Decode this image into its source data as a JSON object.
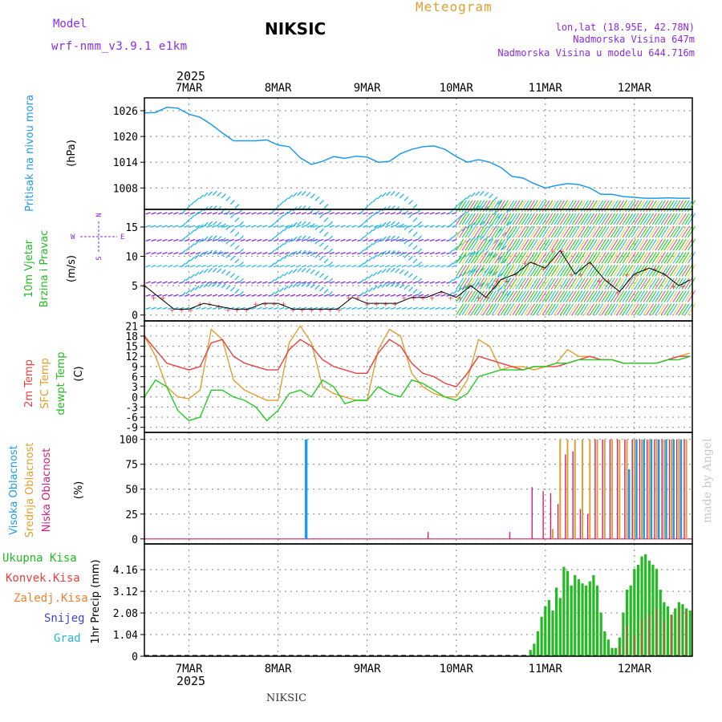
{
  "header": {
    "model_label": "Model",
    "model_name": "wrf-nmm_v3.9.1 e1km",
    "station": "NIKSIC",
    "meteogram": "Meteogram",
    "lonlat": "lon,lat (18.95E, 42.78N)",
    "elevation": "Nadmorska Visina 647m",
    "model_elevation": "Nadmorska Visina u modelu 644.716m",
    "year": "2025",
    "footer_station": "NIKSIC",
    "credit": "made by Angel"
  },
  "colors": {
    "pressure": "#1E9BE8",
    "wind_green": "#22CC22",
    "wind_yellow": "#E0D020",
    "wind_pink": "#FF40A0",
    "wind_cyan": "#22B8E8",
    "wind_purple": "#8A2BE2",
    "temp2m": "#E84040",
    "sfc": "#E0A030",
    "dewpt": "#22CC22",
    "cloud_high": "#1E9BE8",
    "cloud_mid": "#E0A030",
    "cloud_low": "#D0207A",
    "precip_total": "#22BB22",
    "precip_conv": "#E84040",
    "ylabel_pressure": "#1E9BE8",
    "ylabel_wind": "#22BB22",
    "ylabel_temp2m": "#E84040",
    "ylabel_sfc": "#E0A030",
    "ylabel_dew": "#22BB22",
    "ylabel_high": "#1E9BE8",
    "ylabel_mid": "#E0A030",
    "ylabel_low": "#D0207A",
    "legend_total": "#22BB22",
    "legend_conv": "#E84040",
    "legend_frz": "#F08030",
    "legend_snow": "#4040E8",
    "legend_grad": "#22B8D8"
  },
  "days": [
    "7MAR",
    "8MAR",
    "9MAR",
    "10MAR",
    "11MAR",
    "12MAR"
  ],
  "chart_data": [
    {
      "type": "line",
      "title": "",
      "ylabel": [
        "Pritisak na nivou mora",
        "(hPa)"
      ],
      "yticks": [
        1008,
        1014,
        1020,
        1026
      ],
      "ylim": [
        1003,
        1029
      ],
      "x_unit": "hours from 6 MAR 12:00",
      "series": [
        {
          "x": [
            0,
            3,
            6,
            9,
            12,
            15,
            18,
            21,
            24,
            27,
            30,
            33,
            36,
            39,
            42,
            45,
            48,
            51,
            54,
            57,
            60,
            63,
            66,
            69,
            72,
            75,
            78,
            81,
            84,
            87,
            90,
            93,
            96,
            99,
            102,
            105,
            108,
            111,
            114,
            117,
            120,
            123,
            126,
            129,
            132,
            135,
            138,
            141,
            144,
            147
          ],
          "values": [
            1025.5,
            1025.6,
            1026.8,
            1026.6,
            1025.2,
            1024.5,
            1022.8,
            1020.8,
            1019.0,
            1019.0,
            1019.0,
            1019.2,
            1018.0,
            1017.6,
            1015.0,
            1013.5,
            1014.2,
            1015.3,
            1014.9,
            1015.4,
            1015.2,
            1014.0,
            1014.2,
            1016.0,
            1017.0,
            1017.6,
            1017.8,
            1017.0,
            1015.3,
            1014.0,
            1014.6,
            1014.0,
            1012.8,
            1010.7,
            1010.3,
            1009.0,
            1008.0,
            1008.6,
            1009.0,
            1008.8,
            1008.0,
            1006.5,
            1006.5,
            1006.0,
            1005.8,
            1005.6,
            1005.6,
            1005.7,
            1005.6,
            1005.6
          ]
        }
      ]
    },
    {
      "type": "line",
      "title": "",
      "ylabel": [
        "10m Vjetar",
        "Brzina i Pravac",
        "(m/s)"
      ],
      "compass": [
        "N",
        "W",
        "E",
        "S"
      ],
      "yticks": [
        0,
        5,
        10,
        15
      ],
      "ylim": [
        -1,
        18
      ],
      "series": [
        {
          "name": "",
          "x": [
            0,
            4,
            8,
            12,
            16,
            20,
            24,
            28,
            32,
            36,
            40,
            44,
            48,
            52,
            56,
            60,
            64,
            68,
            72,
            76,
            80,
            84,
            88,
            92,
            96,
            100,
            104,
            108,
            112,
            116,
            120,
            124,
            128,
            132,
            136,
            140,
            144,
            147
          ],
          "values": [
            5,
            3,
            1,
            1,
            2,
            1.5,
            1,
            1,
            2,
            2,
            1,
            1,
            1,
            1,
            3,
            2,
            2,
            2,
            3,
            3,
            4,
            3,
            5,
            3,
            6,
            7,
            9,
            8,
            11,
            7,
            9,
            6,
            4,
            7,
            8,
            7,
            5,
            6
          ]
        }
      ]
    },
    {
      "type": "line",
      "title": "",
      "ylabel": [
        "2m Temp",
        "SFC Temp",
        "dewpt Temp",
        "(C)"
      ],
      "yticks": [
        -9,
        -6,
        -3,
        0,
        3,
        6,
        9,
        12,
        15,
        18,
        21
      ],
      "ylim": [
        -10.5,
        22.5
      ],
      "series": [
        {
          "name": "2m Temp",
          "x": [
            0,
            3,
            6,
            9,
            12,
            15,
            18,
            21,
            24,
            27,
            30,
            33,
            36,
            39,
            42,
            45,
            48,
            51,
            54,
            57,
            60,
            63,
            66,
            69,
            72,
            75,
            78,
            81,
            84,
            87,
            90,
            93,
            96,
            99,
            102,
            105,
            108,
            111,
            114,
            117,
            120,
            123,
            126,
            129,
            132,
            135,
            138,
            141,
            144,
            147
          ],
          "values": [
            18,
            14,
            10,
            9,
            8,
            9,
            16,
            17,
            12,
            10,
            9,
            8,
            8,
            14,
            17,
            15,
            11,
            9,
            8,
            7,
            7,
            13,
            17,
            15,
            10,
            7,
            6,
            4,
            3,
            7,
            12,
            11,
            10,
            9,
            8,
            9,
            9,
            9,
            10,
            11,
            12,
            11,
            11,
            10,
            10,
            10,
            10,
            11,
            12,
            12
          ]
        },
        {
          "name": "SFC Temp",
          "x": [
            0,
            3,
            6,
            9,
            12,
            15,
            18,
            21,
            24,
            27,
            30,
            33,
            36,
            39,
            42,
            45,
            48,
            51,
            54,
            57,
            60,
            63,
            66,
            69,
            72,
            75,
            78,
            81,
            84,
            87,
            90,
            93,
            96,
            99,
            102,
            105,
            108,
            111,
            114,
            117,
            120,
            123,
            126,
            129,
            132,
            135,
            138,
            141,
            144,
            147
          ],
          "values": [
            18,
            12,
            3,
            0,
            -0.5,
            2,
            20,
            17,
            5,
            2,
            0.5,
            -1,
            -1,
            16,
            21,
            16,
            3,
            1,
            0,
            -1,
            -1,
            14,
            20,
            18,
            7,
            3,
            1,
            0,
            0,
            5,
            17,
            15,
            8,
            9,
            9,
            8,
            9,
            10,
            14,
            12,
            12,
            11,
            11,
            10,
            10,
            10,
            10,
            11,
            12,
            13
          ]
        },
        {
          "name": "dewpt Temp",
          "x": [
            0,
            3,
            6,
            9,
            12,
            15,
            18,
            21,
            24,
            27,
            30,
            33,
            36,
            39,
            42,
            45,
            48,
            51,
            54,
            57,
            60,
            63,
            66,
            69,
            72,
            75,
            78,
            81,
            84,
            87,
            90,
            93,
            96,
            99,
            102,
            105,
            108,
            111,
            114,
            117,
            120,
            123,
            126,
            129,
            132,
            135,
            138,
            141,
            144,
            147
          ],
          "values": [
            0,
            5,
            3,
            -4,
            -7,
            -6,
            2,
            2,
            0,
            -1,
            -3,
            -7,
            -4,
            1,
            2,
            0,
            5,
            3,
            -2,
            -1,
            -1,
            3,
            1,
            0,
            5,
            4,
            2,
            0,
            -1,
            1,
            6,
            7,
            8,
            8,
            8,
            9,
            9,
            10,
            10,
            11,
            11,
            11,
            11,
            10,
            10,
            10,
            10,
            11,
            11,
            12
          ]
        }
      ]
    },
    {
      "type": "bar",
      "title": "",
      "ylabel": [
        "Visoka Oblacnost",
        "Srednja Oblacnost",
        "Niska Oblacnost",
        "(%)"
      ],
      "yticks": [
        0,
        25,
        50,
        75,
        100
      ],
      "ylim": [
        -5,
        107
      ],
      "series": [
        {
          "name": "Visoka Oblacnost",
          "x": [
            44,
            131,
            133,
            135,
            137,
            139,
            141,
            143,
            145
          ],
          "values": [
            100,
            70,
            100,
            100,
            100,
            100,
            100,
            100,
            100
          ]
        },
        {
          "name": "Srednja Oblacnost",
          "x": [
            110,
            112,
            114,
            116,
            118,
            120,
            122,
            124,
            126,
            128,
            130,
            132,
            134,
            136,
            138,
            140,
            142,
            144,
            146
          ],
          "values": [
            10,
            100,
            100,
            100,
            100,
            100,
            100,
            100,
            100,
            100,
            100,
            100,
            100,
            100,
            100,
            100,
            100,
            100,
            100
          ]
        },
        {
          "name": "Niska Oblacnost",
          "x": [
            76,
            98,
            104,
            107,
            109,
            111,
            113,
            115,
            117,
            119,
            121,
            123,
            125,
            127,
            129,
            131,
            133,
            135,
            137,
            139,
            141,
            143,
            145
          ],
          "values": [
            7,
            7,
            52,
            48,
            46,
            35,
            85,
            88,
            30,
            25,
            100,
            100,
            100,
            100,
            100,
            100,
            100,
            100,
            100,
            100,
            100,
            100,
            100
          ]
        }
      ]
    },
    {
      "type": "bar",
      "title": "",
      "ylabel": [
        "1hr Precip (mm)"
      ],
      "legend": [
        "Ukupna Kisa",
        "Konvek.Kisa",
        "Zaledj.Kisa",
        "Snijeg",
        "Grad"
      ],
      "yticks": [
        0,
        1.04,
        2.08,
        3.12,
        4.16
      ],
      "ylim": [
        0,
        5.4
      ],
      "series": [
        {
          "name": "Ukupna Kisa",
          "x": [
            104,
            105,
            106,
            107,
            108,
            109,
            110,
            111,
            112,
            113,
            114,
            115,
            116,
            117,
            118,
            119,
            120,
            121,
            122,
            123,
            124,
            125,
            126,
            127,
            128,
            129,
            130,
            131,
            132,
            133,
            134,
            135,
            136,
            137,
            138,
            139,
            140,
            141,
            142,
            143,
            144,
            145,
            146,
            147
          ],
          "values": [
            0.3,
            0.6,
            1.2,
            1.9,
            2.4,
            2.7,
            2.2,
            3.3,
            2.8,
            4.3,
            4.1,
            3.4,
            3.9,
            3.7,
            3.5,
            3.4,
            3.6,
            3.9,
            3.4,
            2.1,
            1.2,
            0.8,
            0.4,
            0.4,
            0.9,
            2.1,
            3.2,
            3.4,
            4.2,
            4.4,
            4.8,
            4.9,
            4.6,
            4.4,
            4.2,
            3.2,
            2.6,
            2.4,
            2.0,
            2.3,
            2.6,
            2.5,
            2.3,
            2.2
          ]
        },
        {
          "name": "Konvek.Kisa",
          "x": [
            128,
            130,
            132,
            134,
            136,
            138,
            140,
            142,
            144,
            146
          ],
          "values": [
            0.5,
            1.5,
            1.0,
            1.8,
            2.0,
            2.3,
            1.7,
            2.0,
            2.3,
            2.2
          ]
        }
      ]
    }
  ]
}
